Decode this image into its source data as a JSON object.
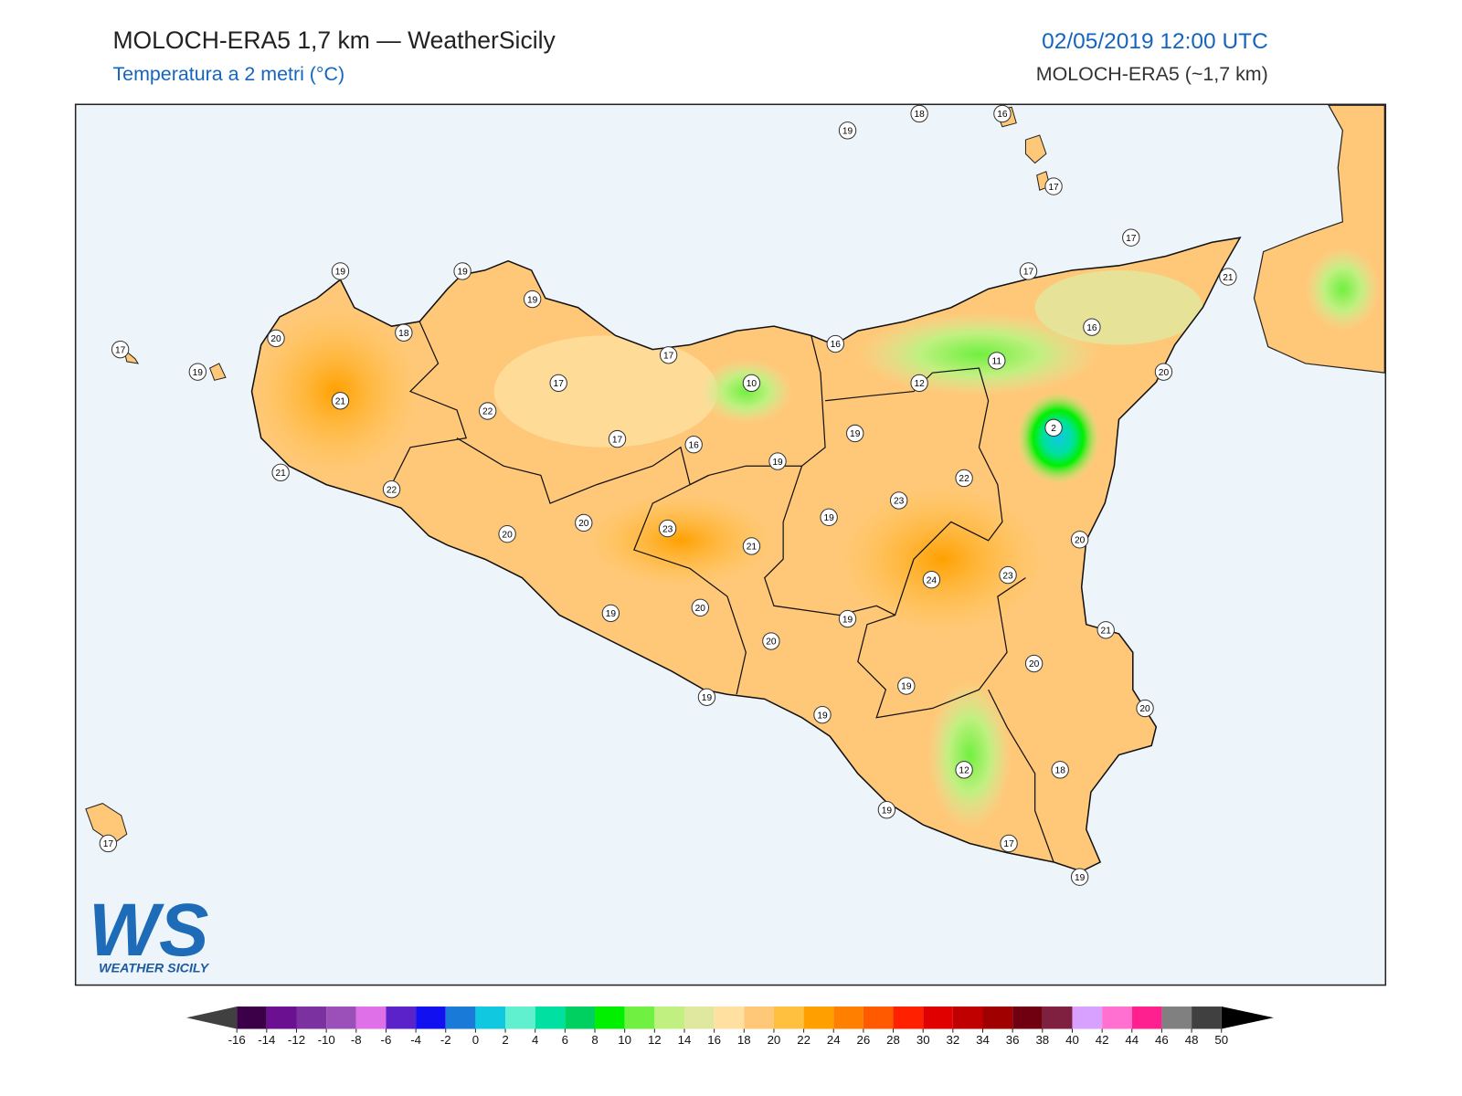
{
  "header": {
    "title": "MOLOCH-ERA5 1,7 km — WeatherSicily",
    "subtitle": "Temperatura a 2 metri (°C)",
    "datetime": "02/05/2019 12:00 UTC",
    "model": "MOLOCH-ERA5 (~1,7 km)"
  },
  "stations": [
    19,
    18,
    16,
    17,
    17,
    17,
    21,
    19,
    19,
    19,
    18,
    20,
    17,
    19,
    17,
    16,
    17,
    10,
    11,
    12,
    16,
    20,
    21,
    22,
    17,
    16,
    19,
    19,
    2,
    22,
    21,
    22,
    23,
    19,
    20,
    20,
    23,
    21,
    20,
    23,
    24,
    19,
    20,
    19,
    20,
    21,
    20,
    19,
    19,
    19,
    20,
    12,
    18,
    19,
    17,
    19,
    17
  ],
  "colorbar": {
    "ticks": [
      -16,
      -14,
      -12,
      -10,
      -8,
      -6,
      -4,
      -2,
      0,
      2,
      4,
      6,
      8,
      10,
      12,
      14,
      16,
      18,
      20,
      22,
      24,
      26,
      28,
      30,
      32,
      34,
      36,
      38,
      40,
      42,
      44,
      46,
      48,
      50
    ],
    "colors": [
      "#3b0048",
      "#6a1090",
      "#7b32a0",
      "#9b4fb8",
      "#e070e8",
      "#5a22c8",
      "#1010f0",
      "#1a7ad8",
      "#10c8e0",
      "#60f0d0",
      "#00e0a0",
      "#00d060",
      "#00f000",
      "#70f040",
      "#c0f080",
      "#e0e8a0",
      "#ffe0a0",
      "#ffc878",
      "#ffc040",
      "#ffa000",
      "#ff8000",
      "#ff5a00",
      "#ff2000",
      "#e00000",
      "#c00000",
      "#a00000",
      "#700010",
      "#802040",
      "#d8a0ff",
      "#ff70d0",
      "#ff2090",
      "#808080",
      "#404040"
    ],
    "under_color": "#404040",
    "over_color": "#000000"
  },
  "logo": {
    "text": "WS",
    "caption": "WEATHER SICILY"
  }
}
